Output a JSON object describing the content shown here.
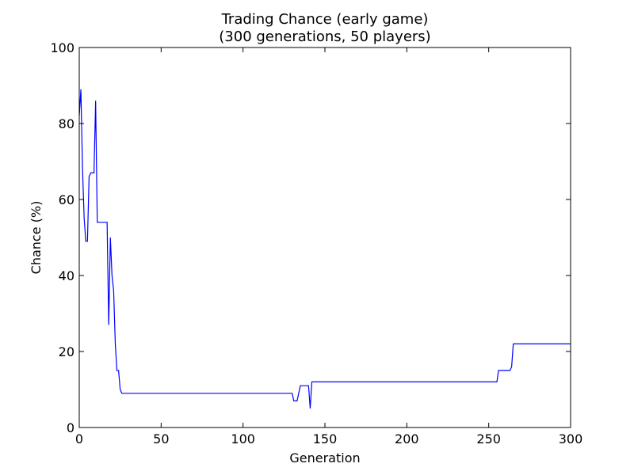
{
  "chart_data": {
    "type": "line",
    "title": [
      "Trading Chance (early game)",
      "(300 generations, 50 players)"
    ],
    "xlabel": "Generation",
    "ylabel": "Chance (%)",
    "xlim": [
      0,
      300
    ],
    "ylim": [
      0,
      100
    ],
    "xticks": [
      0,
      50,
      100,
      150,
      200,
      250,
      300
    ],
    "yticks": [
      0,
      20,
      40,
      60,
      80,
      100
    ],
    "xtick_labels": [
      "0",
      "50",
      "100",
      "150",
      "200",
      "250",
      "300"
    ],
    "ytick_labels": [
      "0",
      "20",
      "40",
      "60",
      "80",
      "100"
    ],
    "grid": false,
    "line_color": "#0000ff",
    "series": [
      {
        "x": [
          0,
          1,
          2,
          3,
          4,
          5,
          6,
          7,
          8,
          9,
          10,
          11,
          12,
          13,
          14,
          15,
          16,
          17,
          18,
          19,
          20,
          21,
          22,
          23,
          24,
          25,
          26,
          30,
          50,
          100,
          128,
          129,
          130,
          131,
          132,
          133,
          134,
          135,
          136,
          137,
          138,
          139,
          140,
          141,
          142,
          143,
          144,
          150,
          200,
          250,
          255,
          256,
          257,
          258,
          259,
          260,
          261,
          262,
          263,
          264,
          265,
          266,
          270,
          300
        ],
        "y": [
          82,
          89,
          68,
          55,
          49,
          49,
          66,
          67,
          67,
          67,
          86,
          54,
          54,
          54,
          54,
          54,
          54,
          54,
          27,
          50,
          40,
          36,
          22,
          15,
          15,
          10,
          9,
          9,
          9,
          9,
          9,
          9,
          9,
          7,
          7,
          7,
          9,
          11,
          11,
          11,
          11,
          11,
          11,
          5,
          12,
          12,
          12,
          12,
          12,
          12,
          12,
          15,
          15,
          15,
          15,
          15,
          15,
          15,
          15,
          16,
          22,
          22,
          22,
          22
        ]
      }
    ]
  }
}
